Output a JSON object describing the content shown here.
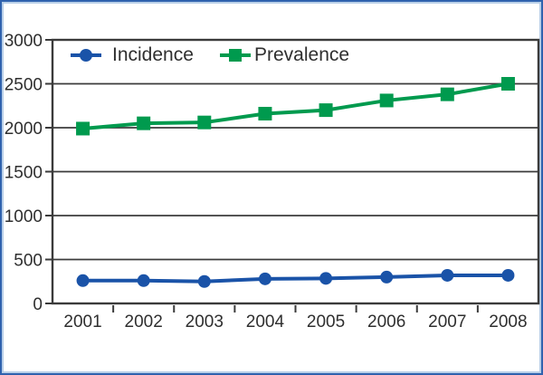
{
  "window": {
    "background_color": "#ffffff",
    "outer_border_color": "#2f62ae",
    "outer_border_inner_color": "#b8cfe8"
  },
  "chart_data": {
    "type": "line",
    "title": "",
    "xlabel": "",
    "ylabel": "",
    "categories": [
      "2001",
      "2002",
      "2003",
      "2004",
      "2005",
      "2006",
      "2007",
      "2008"
    ],
    "series": [
      {
        "name": "Incidence",
        "marker": "circle",
        "color": "#1a53a8",
        "values": [
          260,
          260,
          250,
          280,
          285,
          300,
          320,
          320
        ]
      },
      {
        "name": "Prevalence",
        "marker": "square",
        "color": "#009a4e",
        "values": [
          1990,
          2050,
          2060,
          2160,
          2200,
          2310,
          2380,
          2500
        ]
      }
    ],
    "ylim": [
      0,
      3000
    ],
    "yticks": [
      0,
      500,
      1000,
      1500,
      2000,
      2500,
      3000
    ],
    "grid": true,
    "gridline_color": "#3b3b3b",
    "axis_color": "#3b3b3b",
    "label_color": "#2f2f2f",
    "legend_position": "top-inside"
  }
}
